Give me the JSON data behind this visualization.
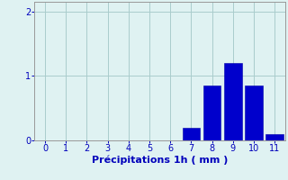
{
  "categories": [
    0,
    1,
    2,
    3,
    4,
    5,
    6,
    7,
    8,
    9,
    10,
    11
  ],
  "values": [
    0,
    0,
    0,
    0,
    0,
    0,
    0,
    0.2,
    0.85,
    1.2,
    0.85,
    0.1
  ],
  "bar_color": "#0000cc",
  "bar_edgecolor": "#0000aa",
  "background_color": "#dff2f2",
  "grid_color": "#aacccc",
  "xlabel": "Précipitations 1h ( mm )",
  "xlabel_fontsize": 8,
  "ylim": [
    0,
    2.15
  ],
  "yticks": [
    0,
    1,
    2
  ],
  "xlim": [
    -0.5,
    11.5
  ],
  "xticks": [
    0,
    1,
    2,
    3,
    4,
    5,
    6,
    7,
    8,
    9,
    10,
    11
  ],
  "tick_color": "#0000bb",
  "tick_fontsize": 7,
  "bar_width": 0.85
}
